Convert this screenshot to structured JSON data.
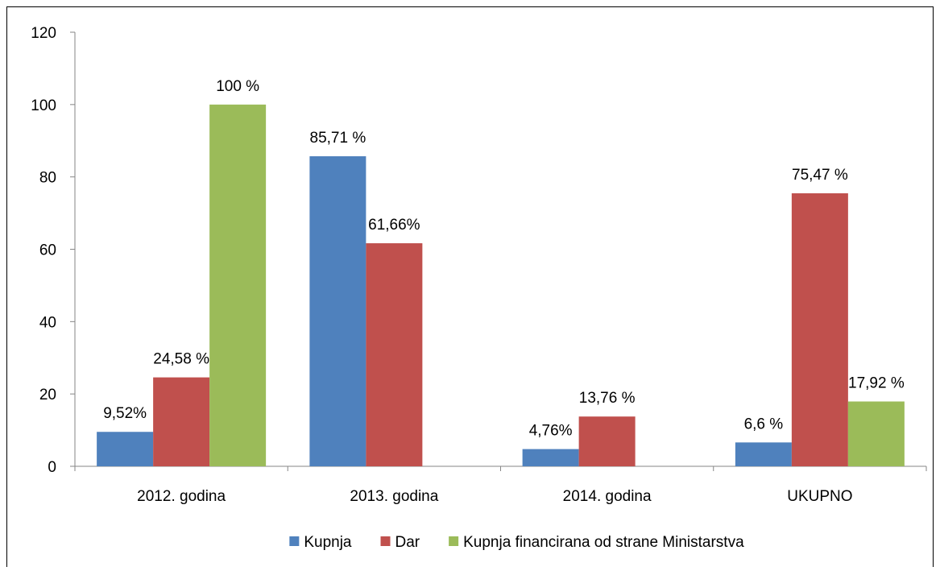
{
  "chart_data": {
    "type": "bar",
    "title": "",
    "xlabel": "",
    "ylabel": "",
    "ylim": [
      0,
      120
    ],
    "yticks": [
      0,
      20,
      40,
      60,
      80,
      100,
      120
    ],
    "grid": false,
    "legend_position": "bottom",
    "categories": [
      "2012. godina",
      "2013. godina",
      "2014. godina",
      "UKUPNO"
    ],
    "series": [
      {
        "name": "Kupnja",
        "color": "#4F81BD",
        "values": [
          9.52,
          85.71,
          4.76,
          6.6
        ],
        "labels": [
          "9,52%",
          "85,71 %",
          "4,76%",
          "6,6 %"
        ]
      },
      {
        "name": "Dar",
        "color": "#C0504D",
        "values": [
          24.58,
          61.66,
          13.76,
          75.47
        ],
        "labels": [
          "24,58 %",
          "61,66%",
          "13,76 %",
          "75,47 %"
        ]
      },
      {
        "name": "Kupnja financirana od strane Ministarstva",
        "color": "#9BBB59",
        "values": [
          100,
          null,
          null,
          17.92
        ],
        "labels": [
          "100 %",
          null,
          null,
          "17,92 %"
        ]
      }
    ]
  }
}
